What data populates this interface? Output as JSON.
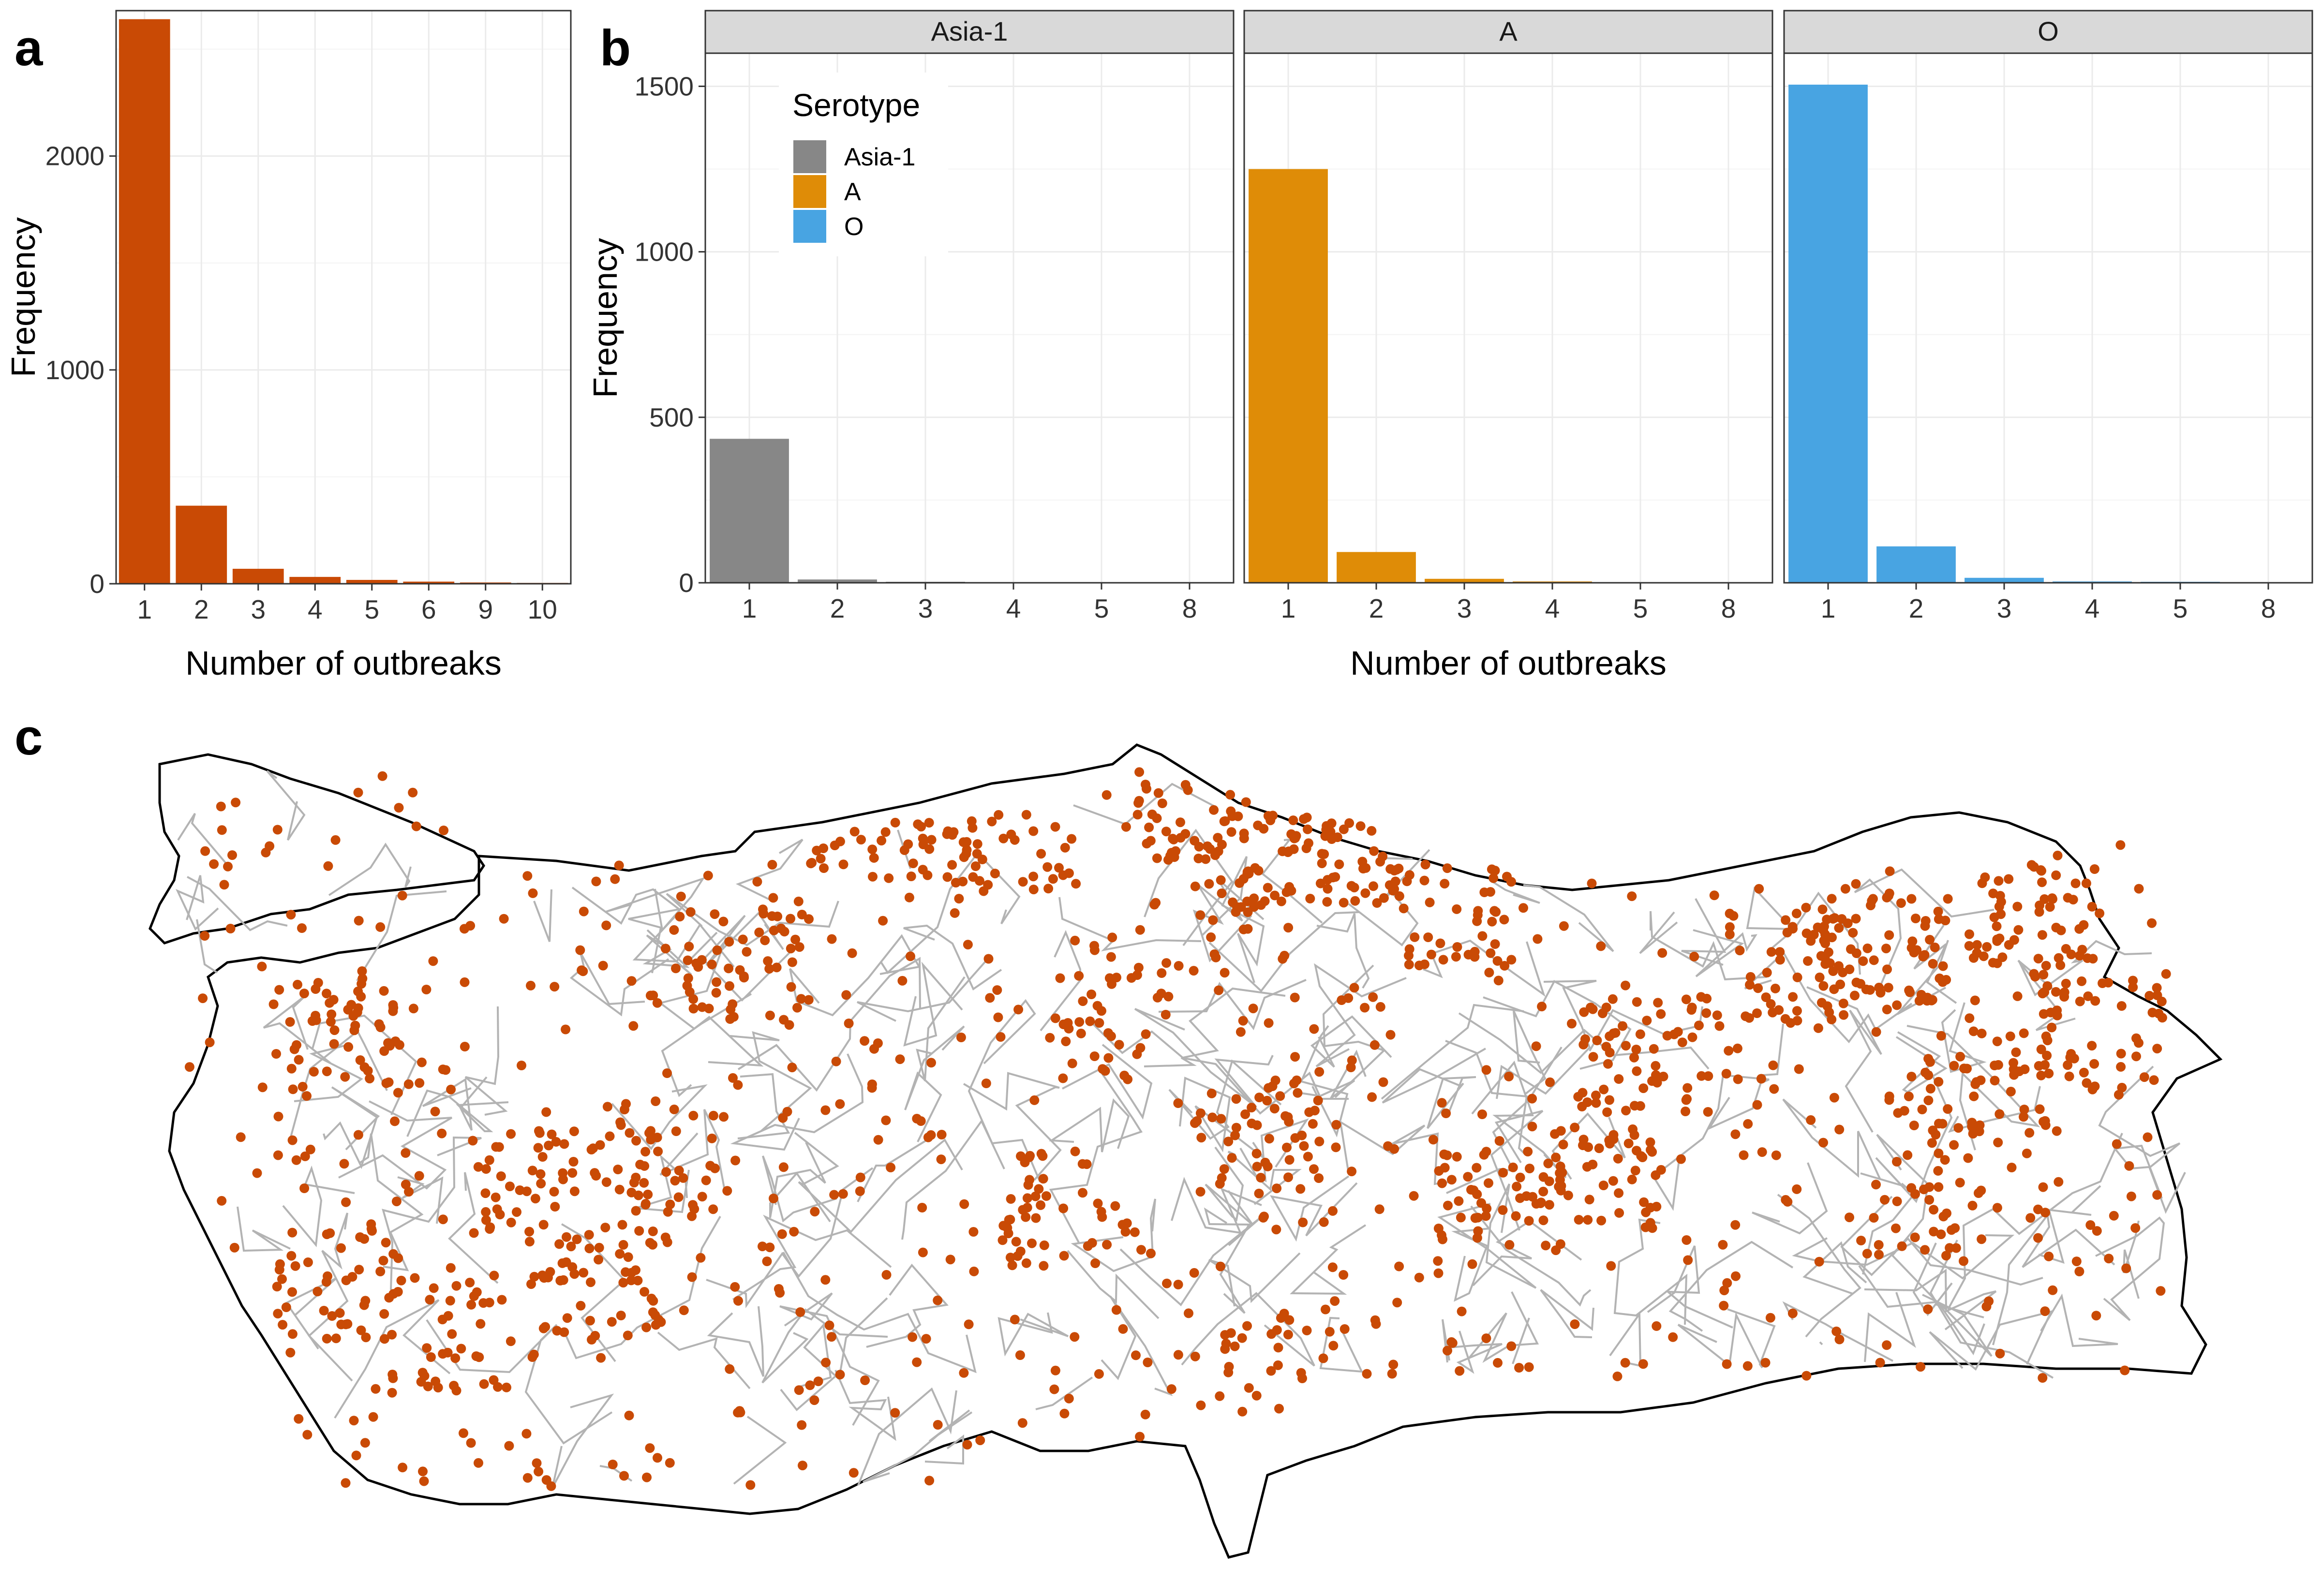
{
  "panel_labels": {
    "a": "a",
    "b": "b",
    "c": "c"
  },
  "colors": {
    "overall": "#C94A05",
    "Asia-1": "#878787",
    "A": "#DF8C07",
    "O": "#48A4E2",
    "points": "#C94A05"
  },
  "chart_data": [
    {
      "type": "bar",
      "panel": "a",
      "categories": [
        "1",
        "2",
        "3",
        "4",
        "5",
        "6",
        "9",
        "10"
      ],
      "values": [
        2640,
        365,
        70,
        32,
        18,
        10,
        6,
        4
      ],
      "xlabel": "Number of outbreaks",
      "ylabel": "Frequency",
      "ylim": [
        0,
        2680
      ],
      "yticks": [
        0,
        1000,
        2000
      ],
      "grid": true
    },
    {
      "type": "bar",
      "panel": "b",
      "faceted": true,
      "categories": [
        "1",
        "2",
        "3",
        "4",
        "5",
        "8"
      ],
      "xlabel": "Number of outbreaks",
      "ylabel": "Frequency",
      "ylim": [
        0,
        1600
      ],
      "yticks": [
        0,
        500,
        1000,
        1500
      ],
      "grid": true,
      "legend": {
        "title": "Serotype",
        "position": "top-left-inside",
        "entries": [
          "Asia-1",
          "A",
          "O"
        ]
      },
      "series": [
        {
          "name": "Asia-1",
          "values": [
            435,
            10,
            3,
            1,
            1,
            1
          ]
        },
        {
          "name": "A",
          "values": [
            1250,
            93,
            12,
            4,
            2,
            1
          ]
        },
        {
          "name": "O",
          "values": [
            1505,
            110,
            15,
            4,
            3,
            1
          ]
        }
      ]
    },
    {
      "type": "scatter",
      "panel": "c",
      "description_role": "map",
      "point_color": "#C94A05"
    }
  ]
}
